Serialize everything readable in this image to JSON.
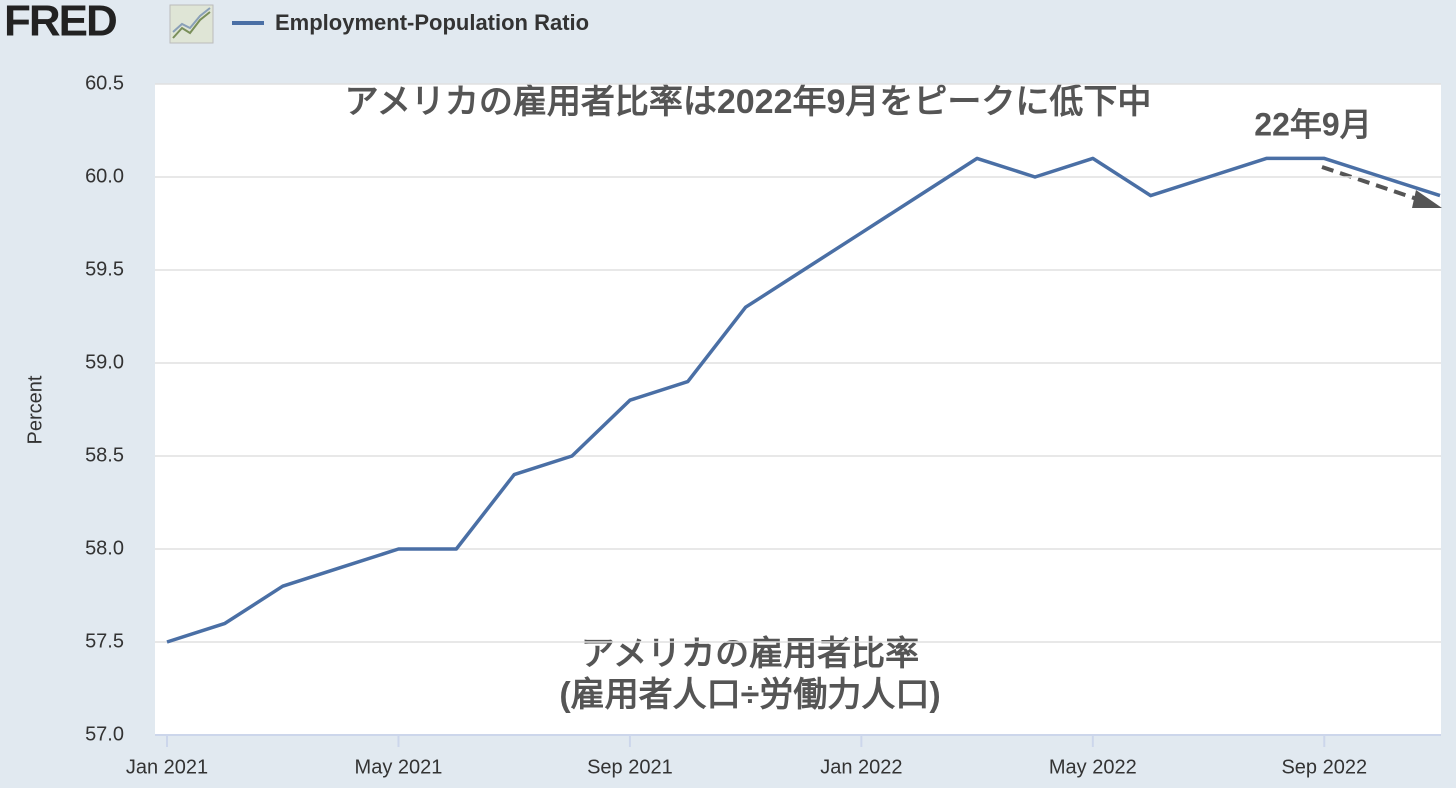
{
  "logo": "FRED",
  "chart_data": {
    "type": "line",
    "annotations": [
      "アメリカの雇用者比率は2022年9月をピークに低下中",
      "22年9月",
      "アメリカの雇用者比率",
      "(雇用者人口÷労働力人口)"
    ],
    "ylabel": "Percent",
    "x": [
      "2021-01",
      "2021-02",
      "2021-03",
      "2021-04",
      "2021-05",
      "2021-06",
      "2021-07",
      "2021-08",
      "2021-09",
      "2021-10",
      "2021-11",
      "2021-12",
      "2022-01",
      "2022-02",
      "2022-03",
      "2022-04",
      "2022-05",
      "2022-06",
      "2022-07",
      "2022-08",
      "2022-09",
      "2022-10",
      "2022-11"
    ],
    "series": [
      {
        "name": "Employment-Population Ratio",
        "color": "#4a6fa5",
        "values": [
          57.5,
          57.6,
          57.8,
          57.9,
          58.0,
          58.0,
          58.4,
          58.5,
          58.8,
          58.9,
          59.3,
          59.5,
          59.7,
          59.9,
          60.1,
          60.0,
          60.1,
          59.9,
          60.0,
          60.1,
          60.1,
          60.0,
          59.9
        ]
      }
    ],
    "xlim": [
      "2021-01",
      "2022-11"
    ],
    "xticks": [
      {
        "value": "2021-01",
        "label": "Jan 2021"
      },
      {
        "value": "2021-05",
        "label": "May 2021"
      },
      {
        "value": "2021-09",
        "label": "Sep 2021"
      },
      {
        "value": "2022-01",
        "label": "Jan 2022"
      },
      {
        "value": "2022-05",
        "label": "May 2022"
      },
      {
        "value": "2022-09",
        "label": "Sep 2022"
      }
    ],
    "ylim": [
      57,
      60.5
    ],
    "yticks": [
      {
        "value": 57,
        "label": "57.0"
      },
      57.5,
      {
        "value": 58,
        "label": "58.0"
      },
      58.5,
      {
        "value": 59,
        "label": "59.0"
      },
      59.5,
      {
        "value": 60,
        "label": "60.0"
      },
      60.5
    ],
    "grid": true
  }
}
